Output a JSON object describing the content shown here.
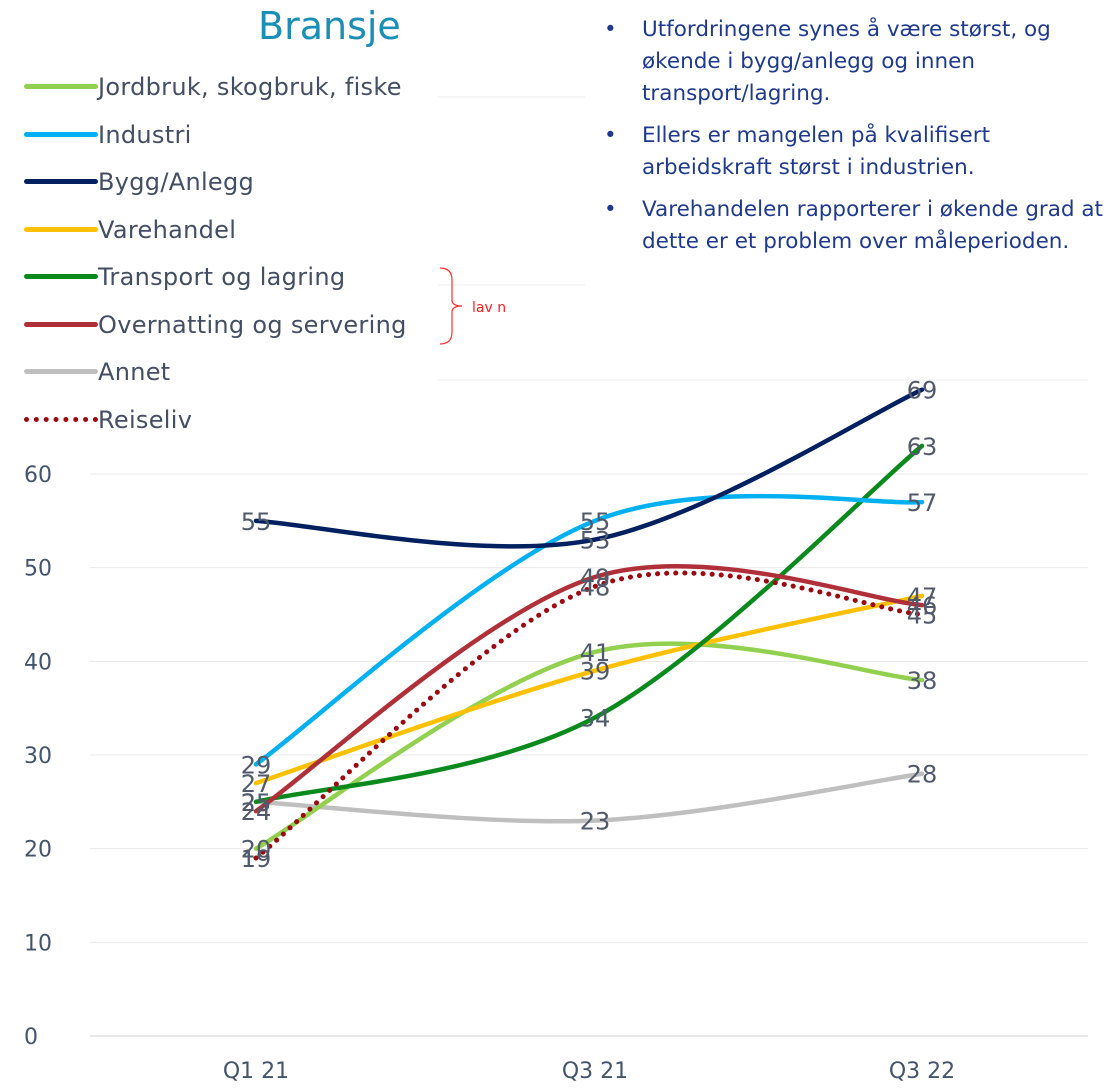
{
  "chart_data": {
    "type": "line",
    "title": "Bransje",
    "categories": [
      "Q1 21",
      "Q3 21",
      "Q3 22"
    ],
    "ylim": [
      0,
      60
    ],
    "yticks": [
      0,
      10,
      20,
      30,
      40,
      50,
      60
    ],
    "grid": true,
    "legend_position": "top-left",
    "series": [
      {
        "name": "Jordbruk, skogbruk, fiske",
        "values": [
          20,
          41,
          38
        ],
        "color": "#92d050",
        "style": "solid"
      },
      {
        "name": "Industri",
        "values": [
          29,
          55,
          57
        ],
        "color": "#00b0f0",
        "style": "solid"
      },
      {
        "name": "Bygg/Anlegg",
        "values": [
          55,
          53,
          69
        ],
        "color": "#002060",
        "style": "solid"
      },
      {
        "name": "Varehandel",
        "values": [
          27,
          39,
          47
        ],
        "color": "#ffc000",
        "style": "solid"
      },
      {
        "name": "Transport og lagring",
        "values": [
          25,
          34,
          63
        ],
        "color": "#0a8a1c",
        "style": "solid"
      },
      {
        "name": "Overnatting og servering",
        "values": [
          24,
          49,
          46
        ],
        "color": "#b0303a",
        "style": "solid"
      },
      {
        "name": "Annet",
        "values": [
          25,
          23,
          28
        ],
        "color": "#bfbfbf",
        "style": "solid"
      },
      {
        "name": "Reiseliv",
        "values": [
          19,
          48,
          45
        ],
        "color": "#9a0a10",
        "style": "dotted"
      }
    ],
    "annotation": "lav n"
  },
  "bullets": [
    "Utfordringene synes å være størst, og økende i bygg/anlegg og innen transport/lagring.",
    "Ellers er mangelen på kvalifisert arbeidskraft størst i industrien.",
    "Varehandelen rapporterer i økende grad at dette er et problem over måleperioden."
  ],
  "bullet_symbol": "•"
}
